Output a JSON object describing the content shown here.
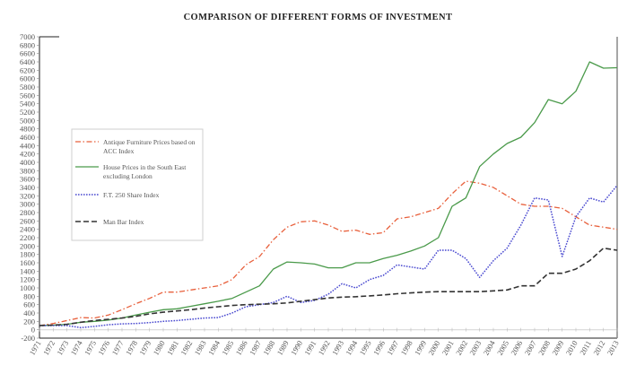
{
  "chart_data": {
    "type": "line",
    "title": "COMPARISON OF DIFFERENT FORMS OF  INVESTMENT",
    "xlabel": "",
    "ylabel": "",
    "ylim": [
      -200,
      7000
    ],
    "yticks": [
      -200,
      0,
      200,
      400,
      600,
      800,
      1000,
      1200,
      1400,
      1600,
      1800,
      2000,
      2200,
      2400,
      2600,
      2800,
      3000,
      3200,
      3400,
      3600,
      3800,
      4000,
      4200,
      4400,
      4600,
      4800,
      5000,
      5200,
      5400,
      5600,
      5800,
      6000,
      6200,
      6400,
      6600,
      6800,
      7000
    ],
    "grid": false,
    "legend_position": "left-middle",
    "x": [
      "1971",
      "1972",
      "1973",
      "1974",
      "1975",
      "1976",
      "1977",
      "1978",
      "1979",
      "1980",
      "1981",
      "1982",
      "1983",
      "1984",
      "1985",
      "1986",
      "1987",
      "1988",
      "1989",
      "1990",
      "1991",
      "1992",
      "1993",
      "1994",
      "1995",
      "1996",
      "1997",
      "1998",
      "1999",
      "2000",
      "2001",
      "2002",
      "2003",
      "2004",
      "2005",
      "2006",
      "2007",
      "2008",
      "2009",
      "2010",
      "2011",
      "2012",
      "2013"
    ],
    "series": [
      {
        "name": "Antique Furniture Prices based on ACC Index",
        "color": "#e8603c",
        "style": "dashdot",
        "values": [
          100,
          150,
          220,
          290,
          280,
          350,
          480,
          620,
          750,
          900,
          900,
          950,
          1000,
          1050,
          1200,
          1550,
          1750,
          2150,
          2450,
          2580,
          2600,
          2500,
          2350,
          2380,
          2280,
          2320,
          2650,
          2700,
          2800,
          2900,
          3250,
          3550,
          3500,
          3400,
          3200,
          3000,
          2950,
          2950,
          2900,
          2700,
          2500,
          2450,
          2400
        ]
      },
      {
        "name": "House Prices in the South East excluding London",
        "color": "#4a9a4a",
        "style": "solid",
        "values": [
          100,
          110,
          130,
          180,
          200,
          230,
          280,
          350,
          420,
          480,
          500,
          560,
          620,
          680,
          750,
          900,
          1050,
          1450,
          1620,
          1600,
          1570,
          1480,
          1480,
          1600,
          1600,
          1700,
          1780,
          1880,
          2000,
          2200,
          2950,
          3150,
          3900,
          4200,
          4450,
          4600,
          4950,
          5500,
          5400,
          5700,
          6400,
          6250,
          6260
        ]
      },
      {
        "name": "F.T. 250 Share Index",
        "color": "#4a4ad0",
        "style": "dotted",
        "values": [
          100,
          100,
          100,
          50,
          80,
          120,
          140,
          150,
          170,
          200,
          220,
          250,
          280,
          290,
          400,
          550,
          600,
          650,
          800,
          650,
          700,
          850,
          1100,
          1000,
          1200,
          1300,
          1550,
          1500,
          1450,
          1900,
          1900,
          1700,
          1250,
          1650,
          1950,
          2500,
          3150,
          3100,
          1750,
          2700,
          3150,
          3050,
          3450
        ]
      },
      {
        "name": "Man Bar Index",
        "color": "#333333",
        "style": "dashed",
        "values": [
          100,
          110,
          130,
          180,
          220,
          250,
          280,
          320,
          380,
          420,
          450,
          480,
          520,
          550,
          580,
          600,
          610,
          620,
          640,
          680,
          720,
          760,
          780,
          790,
          810,
          830,
          860,
          880,
          900,
          910,
          910,
          910,
          910,
          930,
          950,
          1050,
          1050,
          1350,
          1350,
          1450,
          1650,
          1950,
          1900
        ]
      }
    ]
  }
}
